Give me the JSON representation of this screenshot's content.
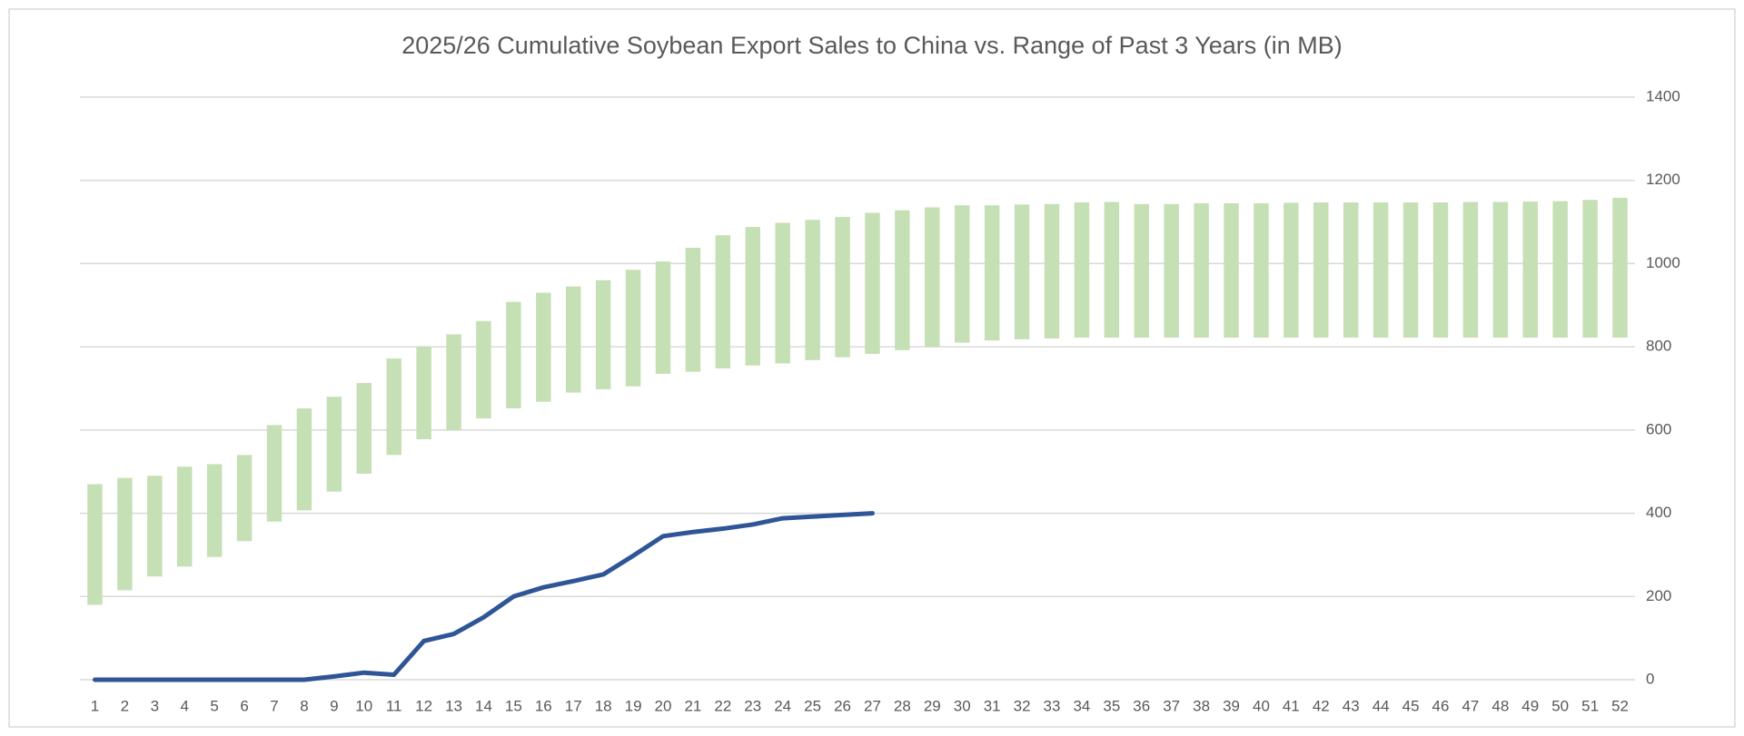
{
  "chart_data": {
    "type": "combo",
    "title": "2025/26 Cumulative Soybean Export Sales to China vs. Range of Past 3 Years (in MB)",
    "categories": [
      "1",
      "2",
      "3",
      "4",
      "5",
      "6",
      "7",
      "8",
      "9",
      "10",
      "11",
      "12",
      "13",
      "14",
      "15",
      "16",
      "17",
      "18",
      "19",
      "20",
      "21",
      "22",
      "23",
      "24",
      "25",
      "26",
      "27",
      "28",
      "29",
      "30",
      "31",
      "32",
      "33",
      "34",
      "35",
      "36",
      "37",
      "38",
      "39",
      "40",
      "41",
      "42",
      "43",
      "44",
      "45",
      "46",
      "47",
      "48",
      "49",
      "50",
      "51",
      "52"
    ],
    "layers": [
      {
        "type": "floating-bar",
        "color": "#c5e0b4",
        "low": [
          180,
          215,
          248,
          272,
          295,
          333,
          380,
          407,
          452,
          495,
          540,
          578,
          600,
          628,
          652,
          668,
          690,
          698,
          705,
          735,
          740,
          748,
          755,
          760,
          768,
          775,
          783,
          792,
          800,
          810,
          815,
          818,
          820,
          822,
          822,
          822,
          822,
          822,
          822,
          822,
          822,
          822,
          822,
          822,
          822,
          822,
          822,
          822,
          822,
          822,
          822,
          822
        ],
        "high": [
          470,
          485,
          490,
          512,
          518,
          540,
          612,
          652,
          680,
          713,
          772,
          800,
          830,
          862,
          908,
          930,
          945,
          960,
          985,
          1005,
          1038,
          1068,
          1088,
          1098,
          1105,
          1112,
          1122,
          1128,
          1135,
          1140,
          1140,
          1142,
          1143,
          1147,
          1148,
          1143,
          1143,
          1145,
          1145,
          1145,
          1146,
          1147,
          1147,
          1147,
          1147,
          1147,
          1148,
          1148,
          1149,
          1150,
          1153,
          1158
        ]
      },
      {
        "type": "line",
        "color": "#2f5597",
        "values": [
          0,
          0,
          0,
          0,
          0,
          0,
          0,
          0,
          8,
          17,
          12,
          93,
          110,
          150,
          200,
          222,
          237,
          253,
          298,
          345,
          355,
          363,
          373,
          388,
          392,
          396,
          400,
          null,
          null,
          null,
          null,
          null,
          null,
          null,
          null,
          null,
          null,
          null,
          null,
          null,
          null,
          null,
          null,
          null,
          null,
          null,
          null,
          null,
          null,
          null,
          null,
          null
        ]
      }
    ],
    "ylim": [
      0,
      1400
    ],
    "yticks": [
      0,
      200,
      400,
      600,
      800,
      1000,
      1200,
      1400
    ],
    "grid": true,
    "y_axis_side": "right"
  }
}
